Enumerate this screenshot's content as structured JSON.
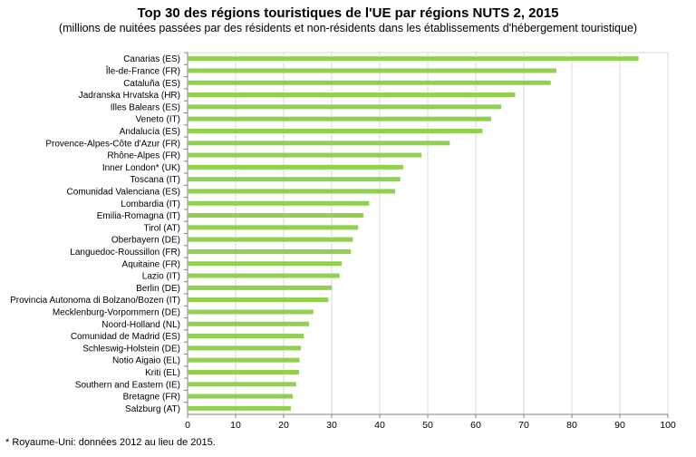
{
  "chart_data": {
    "type": "bar",
    "orientation": "horizontal",
    "title": "Top 30 des régions touristiques de l'UE par régions NUTS 2, 2015",
    "subtitle": "(millions de nuitées passées par des résidents et non-résidents dans les établissements d'hébergement touristique)",
    "xlim": [
      0,
      100
    ],
    "xticks": [
      0,
      10,
      20,
      30,
      40,
      50,
      60,
      70,
      80,
      90,
      100
    ],
    "grid": "vertical",
    "bar_color": "#92d050",
    "categories": [
      "Canarias (ES)",
      "Île-de-France (FR)",
      "Cataluña (ES)",
      "Jadranska Hrvatska (HR)",
      "Illes Balears (ES)",
      "Veneto (IT)",
      "Andalucía (ES)",
      "Provence-Alpes-Côte d'Azur (FR)",
      "Rhône-Alpes (FR)",
      "Inner London* (UK)",
      "Toscana (IT)",
      "Comunidad Valenciana (ES)",
      "Lombardia (IT)",
      "Emilia-Romagna (IT)",
      "Tirol (AT)",
      "Oberbayern (DE)",
      "Languedoc-Roussillon (FR)",
      "Aquitaine (FR)",
      "Lazio (IT)",
      "Berlin (DE)",
      "Provincia Autonoma di Bolzano/Bozen (IT)",
      "Mecklenburg-Vorpommern (DE)",
      "Noord-Holland (NL)",
      "Comunidad de Madrid (ES)",
      "Schleswig-Holstein (DE)",
      "Notio Aigaio (EL)",
      "Kriti (EL)",
      "Southern and Eastern (IE)",
      "Bretagne (FR)",
      "Salzburg (AT)"
    ],
    "values": [
      93.9,
      76.8,
      75.6,
      68.2,
      65.3,
      63.2,
      61.4,
      54.6,
      48.7,
      44.9,
      44.3,
      43.2,
      37.8,
      36.6,
      35.5,
      34.4,
      34.0,
      32.1,
      31.6,
      30.0,
      29.3,
      26.2,
      25.3,
      24.2,
      23.6,
      23.3,
      23.2,
      22.6,
      21.9,
      21.5
    ]
  },
  "footnote": "* Royaume-Uni: données 2012 au lieu de 2015."
}
